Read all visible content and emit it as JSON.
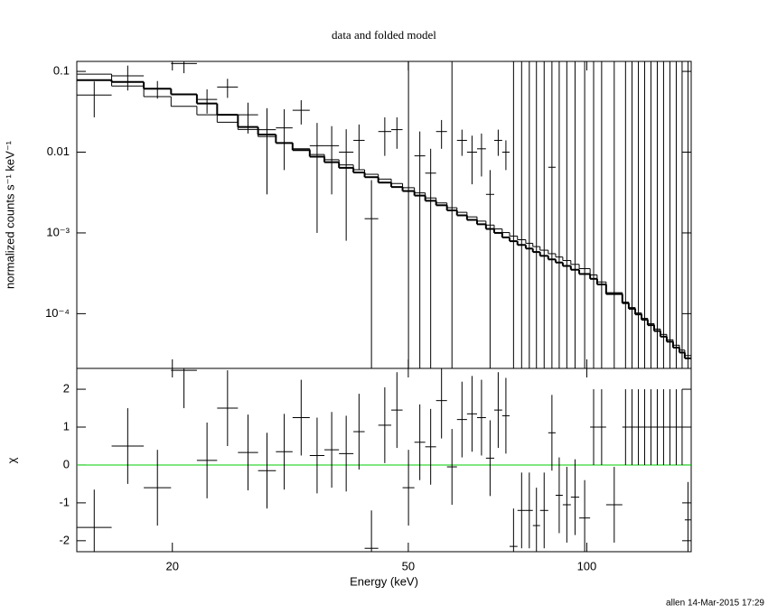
{
  "chart_data": [
    {
      "type": "spectrum",
      "title": "data and folded model",
      "ylabel": "normalized counts s⁻¹ keV⁻¹",
      "xscale": "log",
      "yscale": "log",
      "xlim": [
        13.8,
        150
      ],
      "ylim": [
        2.1e-05,
        0.133
      ],
      "yticks": [
        0.1,
        0.01,
        {
          "value": 0.001,
          "label": "10⁻³"
        },
        {
          "value": 0.0001,
          "label": "10⁻⁴"
        }
      ],
      "bins": [
        13.8,
        15.8,
        17.9,
        19.9,
        22.0,
        23.8,
        25.8,
        27.9,
        29.9,
        31.9,
        34.1,
        36.1,
        38.2,
        40.4,
        42.2,
        44.5,
        46.8,
        48.9,
        51.2,
        53.4,
        55.7,
        58.1,
        60.4,
        62.8,
        65.3,
        67.6,
        69.8,
        72.0,
        74.1,
        76.4,
        78.9,
        81.1,
        83.4,
        86.1,
        88.6,
        91.1,
        94.0,
        97.1,
        101.3,
        104.1,
        107.8,
        114.8,
        117.7,
        120.7,
        123.7,
        126.7,
        129.9,
        133.1,
        136.4,
        139.8,
        143.3,
        146.3,
        150
      ],
      "data": {
        "color": "#000000",
        "values": [
          0.051,
          0.088,
          0.061,
          0.125,
          0.045,
          0.064,
          0.029,
          0.019,
          0.02,
          0.033,
          0.012,
          0.012,
          0.01,
          0.014,
          0.0015,
          0.018,
          0.019,
          0,
          0.009,
          0.0055,
          0.018,
          0,
          0.014,
          0.01,
          0.011,
          0.003,
          0.014,
          0.01,
          0,
          0,
          0,
          0,
          0,
          0.0065,
          0,
          0,
          0,
          0,
          0,
          0,
          0,
          0,
          0,
          0,
          0,
          0,
          0,
          0,
          0,
          0,
          0,
          0
        ],
        "yerr": [
          0.024,
          0.03,
          0.015,
          0.03,
          0.015,
          0.017,
          0.012,
          0.016,
          0.014,
          0.011,
          0.011,
          0.009,
          0.0092,
          0.008,
          0.003,
          0.009,
          0.008,
          0.2,
          0.009,
          0.0055,
          0.007,
          0.2,
          0.005,
          0.006,
          0.006,
          0.003,
          0.005,
          0.004,
          0.2,
          0.2,
          0.2,
          0.2,
          0.2,
          0.2,
          0.2,
          0.2,
          0.2,
          0.2,
          0.2,
          0.2,
          0.2,
          0.2,
          0.2,
          0.2,
          0.2,
          0.2,
          0.2,
          0.2,
          0.2,
          0.2,
          0.2,
          0.2
        ]
      },
      "models": [
        {
          "color": "#000000",
          "values": [
            0.0926,
            0.0659,
            0.0487,
            0.037,
            0.029,
            0.0235,
            0.0191,
            0.0156,
            0.0131,
            0.011,
            0.00935,
            0.00806,
            0.00695,
            0.00606,
            0.00532,
            0.00464,
            0.00409,
            0.00363,
            0.00313,
            0.00271,
            0.00235,
            0.00205,
            0.0018,
            0.00158,
            0.0014,
            0.00125,
            0.00112,
            0.00101,
            0.000914,
            0.000823,
            0.000744,
            0.000677,
            0.000611,
            0.000553,
            0.000503,
            0.000455,
            0.000408,
            0.000361,
            0.000302,
            0.000247,
            0.000182,
            0.000139,
            0.000119,
            0.000102,
            8.75e-05,
            7.52e-05,
            6.45e-05,
            5.54e-05,
            4.75e-05,
            4.07e-05,
            3.54e-05,
            3.03e-05
          ]
        },
        {
          "color": "#000000",
          "values": [
            0.078,
            0.074,
            0.061,
            0.052,
            0.04,
            0.029,
            0.0205,
            0.0165,
            0.013,
            0.0106,
            0.0088,
            0.0075,
            0.0064,
            0.0056,
            0.0049,
            0.0042,
            0.0037,
            0.0033,
            0.0029,
            0.0025,
            0.0022,
            0.0019,
            0.00165,
            0.00145,
            0.00128,
            0.00112,
            0.001,
            0.00088,
            0.00079,
            0.00071,
            0.00064,
            0.00058,
            0.00052,
            0.00047,
            0.00043,
            0.00039,
            0.00035,
            0.00031,
            0.00027,
            0.00023,
            0.000175,
            0.000135,
            0.000115,
            9.8e-05,
            8.4e-05,
            7.2e-05,
            6.1e-05,
            5.2e-05,
            4.5e-05,
            3.8e-05,
            3.3e-05,
            2.8e-05
          ]
        }
      ]
    },
    {
      "type": "residual",
      "ylabel": "χ",
      "xlabel": "Energy (keV)",
      "xscale": "log",
      "xlim": [
        13.8,
        150
      ],
      "xticks": [
        20,
        50,
        100
      ],
      "ylim": [
        -2.29,
        2.55
      ],
      "yticks": [
        -2,
        -1,
        0,
        1,
        2
      ],
      "color": "#000000",
      "zero_color": "#00cc00",
      "yerr": 1,
      "values": [
        -1.65,
        0.5,
        -0.6,
        2.5,
        0.12,
        1.5,
        0.33,
        -0.15,
        0.35,
        1.25,
        0.25,
        0.4,
        0.3,
        0.88,
        -2.2,
        1.05,
        1.45,
        -0.6,
        0.6,
        0.48,
        1.7,
        -0.05,
        1.2,
        1.35,
        1.25,
        0.18,
        1.45,
        1.3,
        -2.15,
        -1.2,
        -1.2,
        -1.6,
        -1.2,
        0.85,
        -0.8,
        -1.05,
        -0.85,
        -1.4,
        1,
        1,
        -1.05,
        1,
        1,
        1,
        1,
        1,
        1,
        1,
        1,
        1,
        1,
        -1.45
      ]
    }
  ],
  "footer": "allen 14-Mar-2015 17:29"
}
